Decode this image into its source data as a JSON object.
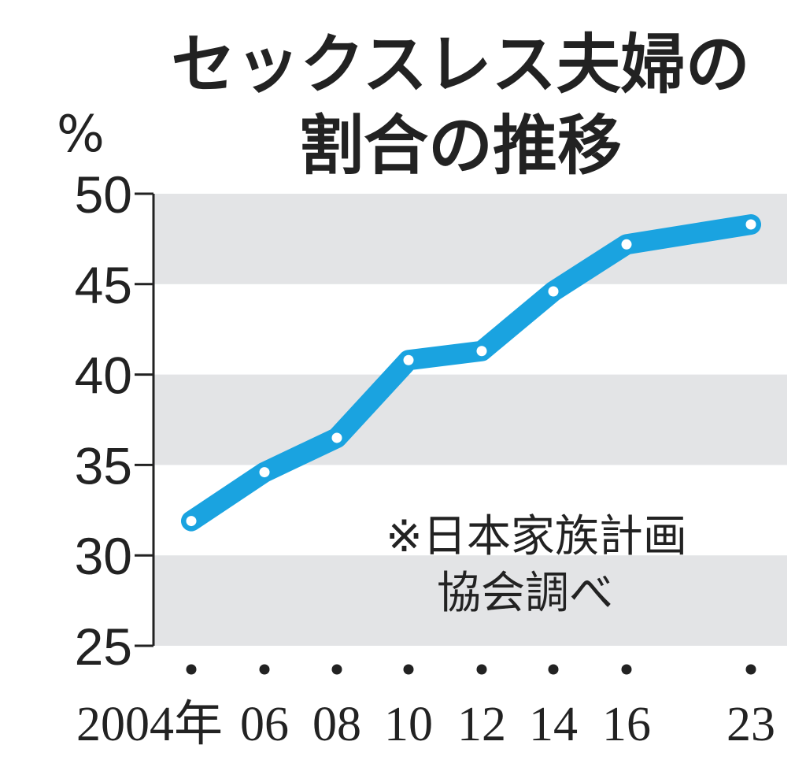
{
  "chart_data": {
    "type": "line",
    "title_lines": [
      "セックスレス夫婦の",
      "割合の推移"
    ],
    "ylabel": "%",
    "ylim": [
      25,
      50
    ],
    "yticks": [
      50,
      45,
      40,
      35,
      30,
      25
    ],
    "categories": [
      "2004年",
      "06",
      "08",
      "10",
      "12",
      "14",
      "16",
      "23"
    ],
    "x": [
      2004,
      2006,
      2008,
      2010,
      2012,
      2014,
      2016,
      2023
    ],
    "values": [
      31.9,
      34.6,
      36.5,
      40.8,
      41.3,
      44.6,
      47.2,
      48.3
    ],
    "note_lines": [
      "※日本家族計画",
      "協会調べ"
    ],
    "colors": {
      "line": "#1aa3e0",
      "band": "#e3e4e6",
      "marker": "#ffffff",
      "axis": "#222222"
    }
  }
}
